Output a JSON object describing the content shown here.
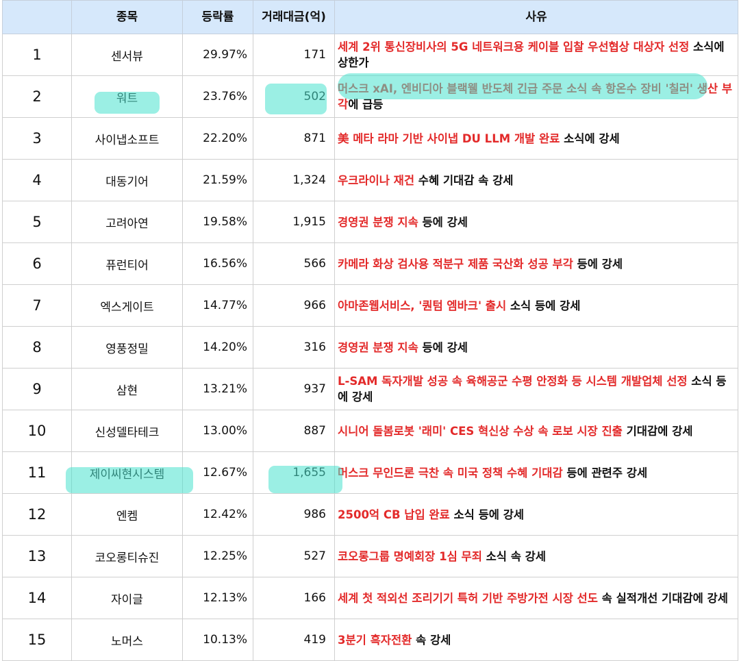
{
  "headers": {
    "rank": "",
    "name": "종목",
    "rate": "등락률",
    "volume": "거래대금(억)",
    "reason": "사유"
  },
  "rows": [
    {
      "rank": "1",
      "name": "센서뷰",
      "rate": "29.97%",
      "volume": "171",
      "reason_hl": "세계 2위 통신장비사의 5G 네트워크용 케이블 입찰 우선협상 대상자 선정",
      "reason_tail": " 소식에 상한가"
    },
    {
      "rank": "2",
      "name": "워트",
      "rate": "23.76%",
      "volume": "502",
      "reason_hl": "머스크 xAI, 엔비디아 블랙웰 반도체 긴급 주문 소식 속 항온수 장비 '칠러' 생산 부각",
      "reason_tail": "에 급등"
    },
    {
      "rank": "3",
      "name": "사이냅소프트",
      "rate": "22.20%",
      "volume": "871",
      "reason_hl": "美 메타 라마 기반 사이냅 DU LLM 개발 완료",
      "reason_tail": " 소식에 강세"
    },
    {
      "rank": "4",
      "name": "대동기어",
      "rate": "21.59%",
      "volume": "1,324",
      "reason_hl": "우크라이나 재건",
      "reason_tail": " 수혜 기대감 속 강세"
    },
    {
      "rank": "5",
      "name": "고려아연",
      "rate": "19.58%",
      "volume": "1,915",
      "reason_hl": "경영권 분쟁 지속",
      "reason_tail": " 등에 강세"
    },
    {
      "rank": "6",
      "name": "퓨런티어",
      "rate": "16.56%",
      "volume": "566",
      "reason_hl": "카메라 화상 검사용 적분구 제품 국산화 성공 부각",
      "reason_tail": " 등에 강세"
    },
    {
      "rank": "7",
      "name": "엑스게이트",
      "rate": "14.77%",
      "volume": "966",
      "reason_hl": "아마존웹서비스, '퀀텀 엠바크' 출시",
      "reason_tail": " 소식 등에 강세"
    },
    {
      "rank": "8",
      "name": "영풍정밀",
      "rate": "14.20%",
      "volume": "316",
      "reason_hl": "경영권 분쟁 지속",
      "reason_tail": " 등에 강세"
    },
    {
      "rank": "9",
      "name": "삼현",
      "rate": "13.21%",
      "volume": "937",
      "reason_hl": " L-SAM 독자개발 성공 속 육해공군 수평 안정화 등 시스템 개발업체 선정",
      "reason_tail": " 소식 등에 강세"
    },
    {
      "rank": "10",
      "name": "신성델타테크",
      "rate": "13.00%",
      "volume": "887",
      "reason_hl": "시니어 돌봄로봇 '래미' CES 혁신상 수상 속 로보 시장 진출",
      "reason_tail": " 기대감에 강세"
    },
    {
      "rank": "11",
      "name": "제이씨현시스템",
      "rate": "12.67%",
      "volume": "1,655",
      "reason_hl": "머스크 무인드론 극찬 속 미국 정책 수혜 기대감",
      "reason_tail": " 등에 관련주 강세"
    },
    {
      "rank": "12",
      "name": "엔켐",
      "rate": "12.42%",
      "volume": "986",
      "reason_hl": "2500억 CB 납입 완료",
      "reason_tail": " 소식 등에 강세"
    },
    {
      "rank": "13",
      "name": "코오롱티슈진",
      "rate": "12.25%",
      "volume": "527",
      "reason_hl": "코오롱그룹 명예회장 1심 무죄",
      "reason_tail": " 소식 속 강세"
    },
    {
      "rank": "14",
      "name": "자이글",
      "rate": "12.13%",
      "volume": "166",
      "reason_hl": "세계 첫 적외선 조리기기 특허 기반 주방가전 시장 선도",
      "reason_tail": " 속 실적개선 기대감에 강세"
    },
    {
      "rank": "15",
      "name": "노머스",
      "rate": "10.13%",
      "volume": "419",
      "reason_hl": "3분기 흑자전환",
      "reason_tail": " 속 강세"
    }
  ],
  "colors": {
    "header_bg": "#d6e8fb",
    "highlight_text": "#e32a2a",
    "marker": "#48e2cd"
  }
}
